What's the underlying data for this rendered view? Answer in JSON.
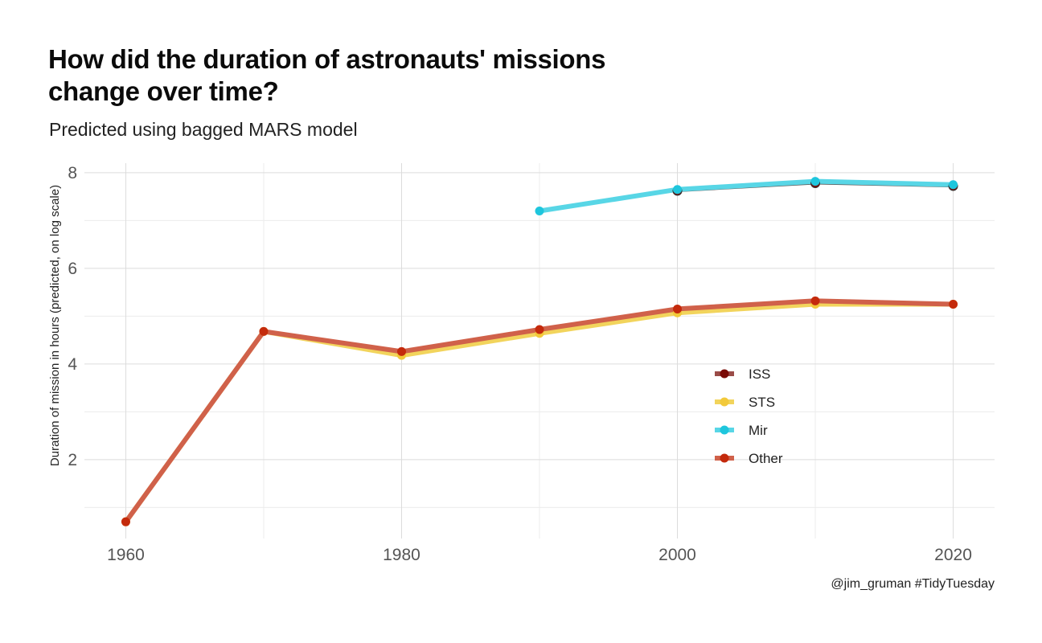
{
  "title": "How did the duration of astronauts' missions change over time?",
  "subtitle": "Predicted using bagged MARS model",
  "caption": "@jim_gruman #TidyTuesday",
  "chart_data": {
    "type": "line",
    "xlabel": "",
    "ylabel": "Duration of mission in hours (predicted, on log scale)",
    "xlim": [
      1957,
      2023
    ],
    "ylim": [
      0.35,
      8.2
    ],
    "x_ticks": [
      1960,
      1980,
      2000,
      2020
    ],
    "y_ticks": [
      2,
      4,
      6,
      8
    ],
    "grid": true,
    "legend_position": "inside-right",
    "series": [
      {
        "name": "ISS",
        "color": "#7a0b06",
        "line_color": "#5b5b5b",
        "x": [
          2000,
          2010,
          2020
        ],
        "y": [
          7.62,
          7.78,
          7.72
        ]
      },
      {
        "name": "STS",
        "color": "#f2c93a",
        "line_color": "#f2d45c",
        "x": [
          1960,
          1970,
          1980,
          1990,
          2000,
          2010,
          2020
        ],
        "y": [
          0.7,
          4.68,
          4.18,
          4.64,
          5.07,
          5.25,
          5.25
        ]
      },
      {
        "name": "Mir",
        "color": "#1ec6dd",
        "line_color": "#58d6e6",
        "x": [
          1990,
          2000,
          2010,
          2020
        ],
        "y": [
          7.2,
          7.65,
          7.82,
          7.75
        ]
      },
      {
        "name": "Other",
        "color": "#c42a0c",
        "line_color": "#d0614a",
        "x": [
          1960,
          1970,
          1980,
          1990,
          2000,
          2010,
          2020
        ],
        "y": [
          0.7,
          4.68,
          4.26,
          4.72,
          5.15,
          5.32,
          5.25
        ]
      }
    ]
  }
}
